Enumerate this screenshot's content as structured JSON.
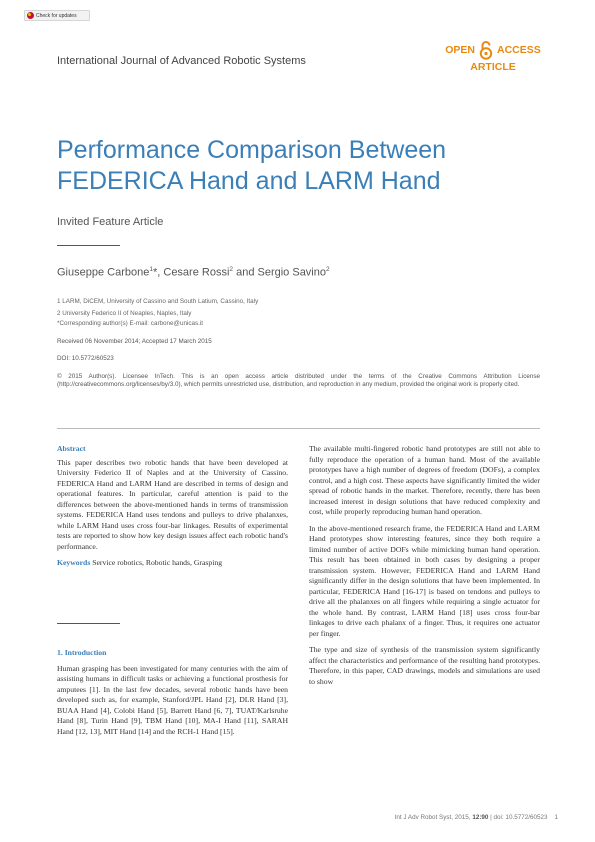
{
  "crossmark": {
    "label": "Check for updates"
  },
  "journal": "International Journal of Advanced Robotic Systems",
  "open_access": {
    "open": "OPEN",
    "access": "ACCESS",
    "article": "ARTICLE"
  },
  "title_line1": "Performance Comparison Between",
  "title_line2": "FEDERICA Hand and LARM Hand",
  "feature_type": "Invited Feature Article",
  "authors": {
    "a1": "Giuseppe Carbone",
    "a1_sup": "1",
    "a1_mark": "*, ",
    "a2": "Cesare Rossi",
    "a2_sup": "2",
    "and": " and ",
    "a3": "Sergio Savino",
    "a3_sup": "2"
  },
  "affiliations": [
    "1 LARM, DiCEM, University of Cassino and South Latium, Cassino, Italy",
    "2 University Federico II of Neaples, Naples, Italy",
    "*Corresponding author(s) E-mail: carbone@unicas.it"
  ],
  "received": "Received 06 November 2014; Accepted 17 March 2015",
  "doi": "DOI: 10.5772/60523",
  "license": "© 2015 Author(s). Licensee InTech. This is an open access article distributed under the terms of the Creative Commons Attribution License (http://creativecommons.org/licenses/by/3.0), which permits unrestricted use, distribution, and reproduction in any medium, provided the original work is properly cited.",
  "abstract_heading": "Abstract",
  "abstract": "This paper describes two robotic hands that have been developed at University Federico II of Naples and at the University of Cassino. FEDERICA Hand and LARM Hand are described in terms of design and operational features. In particular, careful attention is paid to the differences between the above-mentioned hands in terms of transmission systems. FEDERICA Hand uses tendons and pulleys to drive phalanxes, while LARM Hand uses cross four-bar linkages. Results of experimental tests are reported to show how key design issues affect each robotic hand's performance.",
  "keywords_label": "Keywords",
  "keywords": "Service robotics, Robotic hands, Grasping",
  "intro_heading": "1. Introduction",
  "intro_p1": "Human grasping has been investigated for many centuries with the aim of assisting humans in difficult tasks or achieving a functional prosthesis for amputees [1]. In the last few decades, several robotic hands have been developed such as, for example, Stanford/JPL Hand [2], DLR Hand [3], BUAA Hand [4], Colobi Hand [5], Barrett Hand [6, 7], TUAT/Karlsruhe Hand [8], Turin Hand [9], TBM Hand [10], MA-I Hand [11], SARAH Hand [12, 13], MIT Hand [14] and the RCH-1 Hand [15].",
  "right_p1": "The available multi-fingered robotic hand prototypes are still not able to fully reproduce the operation of a human hand. Most of the available prototypes have a high number of degrees of freedom (DOFs), a complex control, and a high cost. These aspects have significantly limited the wider spread of robotic hands in the market. Therefore, recently, there has been increased interest in design solutions that have reduced complexity and cost, while properly reproducing human hand operation.",
  "right_p2": "In the above-mentioned research frame, the FEDERICA Hand and LARM Hand prototypes show interesting features, since they both require a limited number of active DOFs while mimicking human hand operation. This result has been obtained in both cases by designing a proper transmission system. However, FEDERICA Hand and LARM Hand significantly differ in the design solutions that have been implemented. In particular, FEDERICA Hand [16-17] is based on tendons and pulleys to drive all the phalanxes on all fingers while requiring a single actuator for the whole hand. By contrast, LARM Hand [18] uses cross four-bar linkages to drive each phalanx of a finger. Thus, it requires one actuator per finger.",
  "right_p3": "The type and size of synthesis of the transmission system significantly affect the characteristics and performance of the resulting hand prototypes. Therefore, in this paper, CAD drawings, models and simulations are used to show",
  "footer": {
    "citation": "Int J Adv Robot Syst, 2015, ",
    "volume": "12:90",
    "rest": " | doi: 10.5772/60523",
    "page": "1"
  }
}
